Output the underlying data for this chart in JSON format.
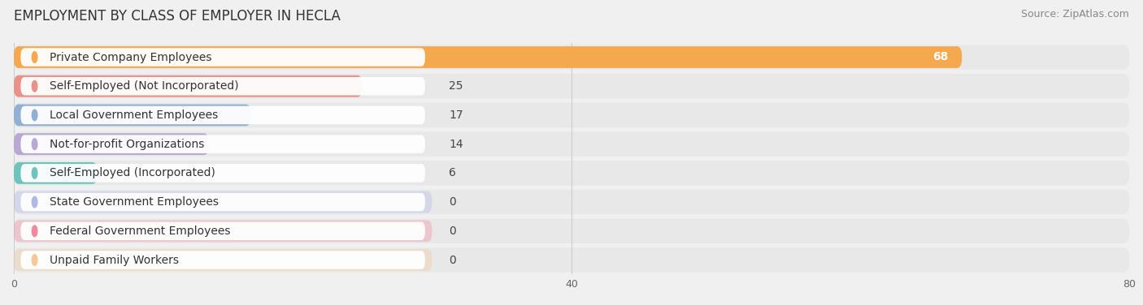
{
  "title": "EMPLOYMENT BY CLASS OF EMPLOYER IN HECLA",
  "source": "Source: ZipAtlas.com",
  "categories": [
    "Private Company Employees",
    "Self-Employed (Not Incorporated)",
    "Local Government Employees",
    "Not-for-profit Organizations",
    "Self-Employed (Incorporated)",
    "State Government Employees",
    "Federal Government Employees",
    "Unpaid Family Workers"
  ],
  "values": [
    68,
    25,
    17,
    14,
    6,
    0,
    0,
    0
  ],
  "bar_colors": [
    "#f5a94e",
    "#e8928a",
    "#92afd4",
    "#b9a8d4",
    "#6ec4bc",
    "#b0b8e8",
    "#f5889a",
    "#f5c895"
  ],
  "xlim": [
    0,
    80
  ],
  "xticks": [
    0,
    40,
    80
  ],
  "background_color": "#f0f0f0",
  "row_bg_color": "#e8e8e8",
  "title_fontsize": 12,
  "source_fontsize": 9,
  "label_fontsize": 10,
  "value_fontsize": 10
}
